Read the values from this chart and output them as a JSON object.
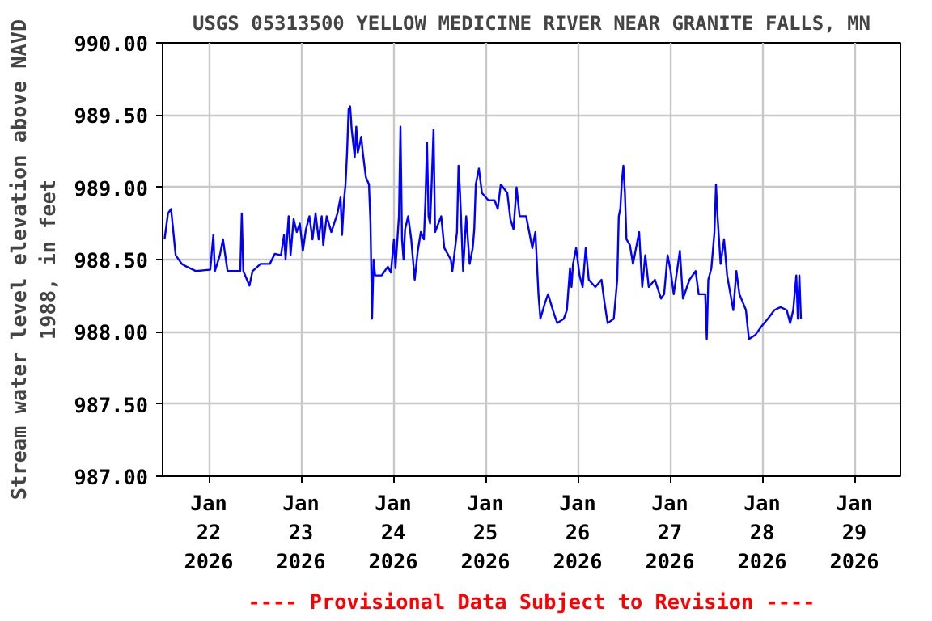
{
  "chart_data": {
    "type": "line",
    "title": "USGS 05313500 YELLOW MEDICINE RIVER NEAR GRANITE FALLS, MN",
    "ylabel": "Stream water level elevation above NAVD\n1988, in feet",
    "annotations": [
      "---- Provisional Data Subject to Revision ----"
    ],
    "xlim": [
      "2026-01-21T12:00",
      "2026-01-29T12:00"
    ],
    "xticks": [
      {
        "value": "2026-01-22",
        "label": "Jan\n22\n2026"
      },
      {
        "value": "2026-01-23",
        "label": "Jan\n23\n2026"
      },
      {
        "value": "2026-01-24",
        "label": "Jan\n24\n2026"
      },
      {
        "value": "2026-01-25",
        "label": "Jan\n25\n2026"
      },
      {
        "value": "2026-01-26",
        "label": "Jan\n26\n2026"
      },
      {
        "value": "2026-01-27",
        "label": "Jan\n27\n2026"
      },
      {
        "value": "2026-01-28",
        "label": "Jan\n28\n2026"
      },
      {
        "value": "2026-01-29",
        "label": "Jan\n29\n2026"
      }
    ],
    "ylim": [
      987,
      990
    ],
    "yticks": [
      {
        "value": 987,
        "label": "987.00"
      },
      {
        "value": 987.5,
        "label": "987.50"
      },
      {
        "value": 988,
        "label": "988.00"
      },
      {
        "value": 988.5,
        "label": "988.50"
      },
      {
        "value": 989,
        "label": "989.00"
      },
      {
        "value": 989.5,
        "label": "989.50"
      },
      {
        "value": 990,
        "label": "990.00"
      }
    ],
    "grid": true,
    "marker": "none",
    "line_style": "solid",
    "series": [
      {
        "color": "#0000ff",
        "x": [
          "2026-01-21T12:30",
          "2026-01-21T13:24",
          "2026-01-21T14:12",
          "2026-01-21T15:24",
          "2026-01-21T17:00",
          "2026-01-21T18:18",
          "2026-01-21T20:42",
          "2026-01-22T00:24",
          "2026-01-22T01:12",
          "2026-01-22T01:36",
          "2026-01-22T02:54",
          "2026-01-22T03:42",
          "2026-01-22T04:54",
          "2026-01-22T08:12",
          "2026-01-22T08:36",
          "2026-01-22T09:00",
          "2026-01-22T10:36",
          "2026-01-22T11:24",
          "2026-01-22T13:30",
          "2026-01-22T15:54",
          "2026-01-22T17:12",
          "2026-01-22T18:48",
          "2026-01-22T19:36",
          "2026-01-22T20:00",
          "2026-01-22T20:48",
          "2026-01-22T21:18",
          "2026-01-22T22:06",
          "2026-01-22T22:54",
          "2026-01-22T23:42",
          "2026-01-23T00:30",
          "2026-01-23T01:18",
          "2026-01-23T02:12",
          "2026-01-23T03:00",
          "2026-01-23T03:48",
          "2026-01-23T04:36",
          "2026-01-23T05:24",
          "2026-01-23T05:48",
          "2026-01-23T06:42",
          "2026-01-23T07:54",
          "2026-01-23T09:30",
          "2026-01-23T10:18",
          "2026-01-23T10:42",
          "2026-01-23T11:12",
          "2026-01-23T11:36",
          "2026-01-23T12:00",
          "2026-01-23T12:24",
          "2026-01-23T12:48",
          "2026-01-23T13:12",
          "2026-01-23T14:00",
          "2026-01-23T14:24",
          "2026-01-23T14:48",
          "2026-01-23T15:42",
          "2026-01-23T16:06",
          "2026-01-23T16:54",
          "2026-01-23T17:42",
          "2026-01-23T18:06",
          "2026-01-23T18:30",
          "2026-01-23T18:54",
          "2026-01-23T19:18",
          "2026-01-23T21:00",
          "2026-01-23T22:36",
          "2026-01-23T23:24",
          "2026-01-24T00:12",
          "2026-01-24T00:36",
          "2026-01-24T01:30",
          "2026-01-24T01:54",
          "2026-01-24T02:18",
          "2026-01-24T02:42",
          "2026-01-24T03:06",
          "2026-01-24T03:54",
          "2026-01-24T04:42",
          "2026-01-24T05:36",
          "2026-01-24T06:24",
          "2026-01-24T07:12",
          "2026-01-24T08:00",
          "2026-01-24T08:24",
          "2026-01-24T08:48",
          "2026-01-24T09:12",
          "2026-01-24T09:36",
          "2026-01-24T10:00",
          "2026-01-24T10:30",
          "2026-01-24T10:54",
          "2026-01-24T12:30",
          "2026-01-24T13:18",
          "2026-01-24T15:00",
          "2026-01-24T15:24",
          "2026-01-24T16:36",
          "2026-01-24T17:00",
          "2026-01-24T17:24",
          "2026-01-24T18:12",
          "2026-01-24T19:00",
          "2026-01-24T19:54",
          "2026-01-24T20:42",
          "2026-01-24T21:06",
          "2026-01-24T21:30",
          "2026-01-24T22:18",
          "2026-01-24T23:06",
          "2026-01-25T00:48",
          "2026-01-25T02:24",
          "2026-01-25T03:12",
          "2026-01-25T04:00",
          "2026-01-25T05:42",
          "2026-01-25T06:30",
          "2026-01-25T07:18",
          "2026-01-25T08:06",
          "2026-01-25T08:54",
          "2026-01-25T10:36",
          "2026-01-25T11:24",
          "2026-01-25T12:12",
          "2026-01-25T13:00",
          "2026-01-25T13:48",
          "2026-01-25T14:18",
          "2026-01-25T15:30",
          "2026-01-25T16:18",
          "2026-01-25T17:54",
          "2026-01-25T18:42",
          "2026-01-25T20:24",
          "2026-01-25T21:12",
          "2026-01-25T22:00",
          "2026-01-25T22:24",
          "2026-01-25T22:48",
          "2026-01-25T23:36",
          "2026-01-26T00:30",
          "2026-01-26T01:18",
          "2026-01-26T02:06",
          "2026-01-26T02:54",
          "2026-01-26T04:36",
          "2026-01-26T06:12",
          "2026-01-26T07:00",
          "2026-01-26T07:48",
          "2026-01-26T09:24",
          "2026-01-26T10:18",
          "2026-01-26T10:42",
          "2026-01-26T11:06",
          "2026-01-26T11:30",
          "2026-01-26T11:54",
          "2026-01-26T12:18",
          "2026-01-26T12:42",
          "2026-01-26T13:36",
          "2026-01-26T14:24",
          "2026-01-26T16:00",
          "2026-01-26T16:48",
          "2026-01-26T17:36",
          "2026-01-26T18:30",
          "2026-01-26T20:06",
          "2026-01-26T21:42",
          "2026-01-26T22:30",
          "2026-01-26T23:24",
          "2026-01-27T00:12",
          "2026-01-27T01:00",
          "2026-01-27T02:36",
          "2026-01-27T03:24",
          "2026-01-27T05:06",
          "2026-01-27T06:42",
          "2026-01-27T07:30",
          "2026-01-27T09:12",
          "2026-01-27T09:36",
          "2026-01-27T10:00",
          "2026-01-27T10:48",
          "2026-01-27T11:36",
          "2026-01-27T12:00",
          "2026-01-27T12:24",
          "2026-01-27T13:12",
          "2026-01-27T14:06",
          "2026-01-27T14:54",
          "2026-01-27T16:30",
          "2026-01-27T17:18",
          "2026-01-27T18:06",
          "2026-01-27T19:48",
          "2026-01-27T20:12",
          "2026-01-27T20:36",
          "2026-01-27T22:18",
          "2026-01-27T23:54",
          "2026-01-28T01:30",
          "2026-01-28T03:12",
          "2026-01-28T04:48",
          "2026-01-28T06:24",
          "2026-01-28T07:18",
          "2026-01-28T08:06",
          "2026-01-28T08:54",
          "2026-01-28T09:18",
          "2026-01-28T09:42",
          "2026-01-28T10:06"
        ],
        "values": [
          988.64,
          988.82,
          988.85,
          988.53,
          988.47,
          988.45,
          988.42,
          988.43,
          988.67,
          988.42,
          988.53,
          988.64,
          988.42,
          988.42,
          988.82,
          988.42,
          988.32,
          988.42,
          988.47,
          988.47,
          988.54,
          988.53,
          988.67,
          988.5,
          988.8,
          988.53,
          988.78,
          988.69,
          988.75,
          988.56,
          988.71,
          988.8,
          988.64,
          988.82,
          988.64,
          988.8,
          988.6,
          988.8,
          988.69,
          988.82,
          988.93,
          988.67,
          988.91,
          989.02,
          989.24,
          989.54,
          989.56,
          989.4,
          989.21,
          989.42,
          989.24,
          989.35,
          989.24,
          989.07,
          989.02,
          988.75,
          988.09,
          988.5,
          988.39,
          988.39,
          988.45,
          988.41,
          988.64,
          988.44,
          988.8,
          989.42,
          988.64,
          988.5,
          988.71,
          988.8,
          988.64,
          988.36,
          988.56,
          988.69,
          988.64,
          988.91,
          989.31,
          988.8,
          988.75,
          989.02,
          989.4,
          988.69,
          988.8,
          988.58,
          988.5,
          988.42,
          988.69,
          989.15,
          988.96,
          988.42,
          988.8,
          988.47,
          988.58,
          988.71,
          989.02,
          989.13,
          988.96,
          988.91,
          988.91,
          988.85,
          989.02,
          988.96,
          988.78,
          988.71,
          989.0,
          988.8,
          988.8,
          988.69,
          988.58,
          988.69,
          988.26,
          988.09,
          988.2,
          988.26,
          988.12,
          988.06,
          988.09,
          988.15,
          988.44,
          988.31,
          988.47,
          988.58,
          988.39,
          988.31,
          988.58,
          988.36,
          988.31,
          988.36,
          988.2,
          988.06,
          988.09,
          988.36,
          988.8,
          988.85,
          989.04,
          989.15,
          988.96,
          988.64,
          988.6,
          988.47,
          988.69,
          988.31,
          988.53,
          988.31,
          988.36,
          988.23,
          988.26,
          988.53,
          988.42,
          988.26,
          988.56,
          988.23,
          988.36,
          988.42,
          988.26,
          988.26,
          987.95,
          988.36,
          988.44,
          988.69,
          989.02,
          988.8,
          988.47,
          988.64,
          988.39,
          988.15,
          988.42,
          988.26,
          988.15,
          988.04,
          987.95,
          987.98,
          988.04,
          988.09,
          988.15,
          988.17,
          988.15,
          988.06,
          988.15,
          988.39,
          988.09,
          988.39,
          988.09
        ]
      }
    ]
  }
}
